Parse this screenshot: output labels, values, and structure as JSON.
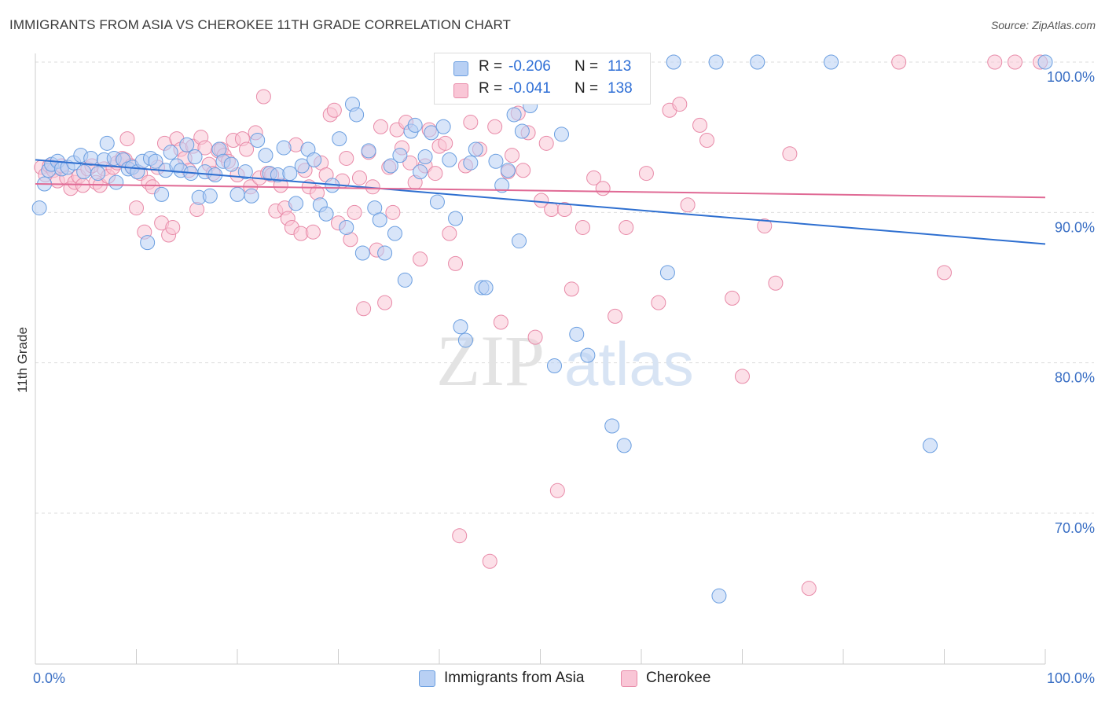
{
  "title": "IMMIGRANTS FROM ASIA VS CHEROKEE 11TH GRADE CORRELATION CHART",
  "source": "Source: ZipAtlas.com",
  "legend": {
    "series1": {
      "r_label": "R =",
      "r_value": "-0.206",
      "n_label": "N =",
      "n_value": "113"
    },
    "series2": {
      "r_label": "R =",
      "r_value": "-0.041",
      "n_label": "N =",
      "n_value": "138"
    }
  },
  "watermark": {
    "part1": "ZIP",
    "part2": "atlas"
  },
  "colors": {
    "blue_fill": "#b8d0f4",
    "blue_stroke": "#6a9ee0",
    "blue_line": "#2e6fd0",
    "pink_fill": "#f9c6d6",
    "pink_stroke": "#e88aa8",
    "pink_line": "#e06a95",
    "axis_text": "#3a6fc4",
    "grid": "#dddddd"
  },
  "chart_data": {
    "type": "scatter",
    "title": "IMMIGRANTS FROM ASIA VS CHEROKEE 11TH GRADE CORRELATION CHART",
    "xlabel": "",
    "ylabel": "11th Grade",
    "xlim": [
      0,
      100
    ],
    "ylim": [
      60.5,
      102.5
    ],
    "x_tick_labels": [
      "0.0%",
      "100.0%"
    ],
    "y_ticks": [
      70,
      80,
      90,
      100
    ],
    "y_tick_labels": [
      "70.0%",
      "80.0%",
      "90.0%",
      "100.0%"
    ],
    "grid": "horizontal dashed",
    "legend_position": "top-center",
    "series": [
      {
        "name": "Immigrants from Asia",
        "color": "blue",
        "trend": {
          "x": [
            0,
            100
          ],
          "y": [
            93.5,
            87.9
          ]
        },
        "points": [
          [
            0.4,
            90.3
          ],
          [
            0.9,
            91.9
          ],
          [
            1.3,
            92.8
          ],
          [
            1.6,
            93.2
          ],
          [
            2.2,
            93.4
          ],
          [
            2.6,
            92.9
          ],
          [
            3.2,
            93.0
          ],
          [
            3.8,
            93.3
          ],
          [
            4.5,
            93.8
          ],
          [
            4.8,
            92.7
          ],
          [
            5.5,
            93.6
          ],
          [
            6.2,
            92.6
          ],
          [
            6.8,
            93.5
          ],
          [
            7.1,
            94.6
          ],
          [
            7.8,
            93.6
          ],
          [
            8.0,
            92.0
          ],
          [
            8.7,
            93.5
          ],
          [
            9.2,
            92.9
          ],
          [
            9.6,
            93.0
          ],
          [
            10.1,
            92.7
          ],
          [
            10.6,
            93.4
          ],
          [
            11.1,
            88.0
          ],
          [
            11.4,
            93.6
          ],
          [
            11.9,
            93.4
          ],
          [
            12.5,
            91.2
          ],
          [
            12.9,
            92.8
          ],
          [
            13.4,
            94.0
          ],
          [
            14.0,
            93.1
          ],
          [
            14.4,
            92.8
          ],
          [
            15.0,
            94.5
          ],
          [
            15.4,
            92.6
          ],
          [
            15.8,
            93.7
          ],
          [
            16.2,
            91.0
          ],
          [
            16.8,
            92.7
          ],
          [
            17.3,
            91.1
          ],
          [
            17.8,
            92.5
          ],
          [
            18.2,
            94.2
          ],
          [
            18.6,
            93.4
          ],
          [
            19.4,
            93.2
          ],
          [
            20.0,
            91.2
          ],
          [
            20.8,
            92.7
          ],
          [
            21.4,
            91.1
          ],
          [
            22.0,
            94.8
          ],
          [
            22.8,
            93.8
          ],
          [
            23.2,
            92.6
          ],
          [
            24.0,
            92.5
          ],
          [
            24.6,
            94.3
          ],
          [
            25.2,
            92.6
          ],
          [
            25.8,
            90.6
          ],
          [
            26.4,
            93.1
          ],
          [
            27.0,
            94.2
          ],
          [
            27.6,
            93.5
          ],
          [
            28.2,
            90.5
          ],
          [
            28.8,
            89.9
          ],
          [
            29.4,
            91.8
          ],
          [
            30.1,
            94.9
          ],
          [
            30.8,
            89.0
          ],
          [
            31.4,
            97.2
          ],
          [
            31.8,
            96.5
          ],
          [
            32.4,
            87.3
          ],
          [
            33.0,
            94.1
          ],
          [
            33.6,
            90.3
          ],
          [
            34.1,
            89.5
          ],
          [
            34.6,
            87.3
          ],
          [
            35.2,
            93.1
          ],
          [
            35.6,
            88.6
          ],
          [
            36.1,
            93.8
          ],
          [
            36.6,
            85.5
          ],
          [
            37.2,
            95.4
          ],
          [
            37.6,
            95.8
          ],
          [
            38.1,
            92.7
          ],
          [
            38.6,
            93.7
          ],
          [
            39.2,
            95.3
          ],
          [
            39.8,
            90.7
          ],
          [
            40.4,
            95.7
          ],
          [
            41.0,
            93.5
          ],
          [
            41.6,
            89.6
          ],
          [
            42.1,
            82.4
          ],
          [
            42.6,
            81.5
          ],
          [
            43.1,
            93.3
          ],
          [
            43.6,
            94.2
          ],
          [
            44.2,
            85.0
          ],
          [
            44.6,
            85.0
          ],
          [
            45.6,
            93.4
          ],
          [
            46.2,
            91.8
          ],
          [
            46.8,
            92.8
          ],
          [
            47.4,
            96.5
          ],
          [
            47.9,
            88.1
          ],
          [
            48.2,
            95.4
          ],
          [
            49.0,
            97.1
          ],
          [
            49.6,
            100.0
          ],
          [
            50.3,
            98.1
          ],
          [
            51.4,
            79.8
          ],
          [
            52.1,
            95.2
          ],
          [
            52.6,
            100.0
          ],
          [
            53.6,
            81.9
          ],
          [
            54.7,
            80.5
          ],
          [
            57.1,
            75.8
          ],
          [
            58.3,
            74.5
          ],
          [
            62.6,
            86.0
          ],
          [
            63.2,
            100.0
          ],
          [
            67.4,
            100.0
          ],
          [
            67.7,
            64.5
          ],
          [
            71.5,
            100.0
          ],
          [
            78.8,
            100.0
          ],
          [
            88.6,
            74.5
          ],
          [
            100.0,
            100.0
          ]
        ]
      },
      {
        "name": "Cherokee",
        "color": "pink",
        "trend": {
          "x": [
            0,
            100
          ],
          "y": [
            91.9,
            91.0
          ]
        },
        "points": [
          [
            0.6,
            93.0
          ],
          [
            1.0,
            92.5
          ],
          [
            1.4,
            93.1
          ],
          [
            1.8,
            92.8
          ],
          [
            2.2,
            92.1
          ],
          [
            2.6,
            93.1
          ],
          [
            3.1,
            92.3
          ],
          [
            3.5,
            91.6
          ],
          [
            3.9,
            92.0
          ],
          [
            4.3,
            92.4
          ],
          [
            4.7,
            91.8
          ],
          [
            5.2,
            92.9
          ],
          [
            5.6,
            93.1
          ],
          [
            6.0,
            92.0
          ],
          [
            6.4,
            91.8
          ],
          [
            6.8,
            92.9
          ],
          [
            7.2,
            92.4
          ],
          [
            7.7,
            93.0
          ],
          [
            8.1,
            93.3
          ],
          [
            8.6,
            93.6
          ],
          [
            8.9,
            93.5
          ],
          [
            9.1,
            94.9
          ],
          [
            9.5,
            93.1
          ],
          [
            10.0,
            90.3
          ],
          [
            10.4,
            92.6
          ],
          [
            10.8,
            88.7
          ],
          [
            11.2,
            92.0
          ],
          [
            11.6,
            91.7
          ],
          [
            12.1,
            93.0
          ],
          [
            12.5,
            89.3
          ],
          [
            12.8,
            94.6
          ],
          [
            13.2,
            88.5
          ],
          [
            13.6,
            89.0
          ],
          [
            14.0,
            94.9
          ],
          [
            14.4,
            94.2
          ],
          [
            14.8,
            93.6
          ],
          [
            15.2,
            92.8
          ],
          [
            15.6,
            94.4
          ],
          [
            16.0,
            90.2
          ],
          [
            16.4,
            95.0
          ],
          [
            16.8,
            94.3
          ],
          [
            17.2,
            93.2
          ],
          [
            17.6,
            92.6
          ],
          [
            18.1,
            94.1
          ],
          [
            18.4,
            94.2
          ],
          [
            18.7,
            93.8
          ],
          [
            19.1,
            93.4
          ],
          [
            19.6,
            94.8
          ],
          [
            20.0,
            92.5
          ],
          [
            20.5,
            94.9
          ],
          [
            20.9,
            94.2
          ],
          [
            21.3,
            91.7
          ],
          [
            21.8,
            95.3
          ],
          [
            22.2,
            92.3
          ],
          [
            22.6,
            97.7
          ],
          [
            23.0,
            92.6
          ],
          [
            23.4,
            92.5
          ],
          [
            23.8,
            90.1
          ],
          [
            24.3,
            91.8
          ],
          [
            24.7,
            90.3
          ],
          [
            25.0,
            89.6
          ],
          [
            25.4,
            89.0
          ],
          [
            25.8,
            94.5
          ],
          [
            26.3,
            88.6
          ],
          [
            26.7,
            92.8
          ],
          [
            27.1,
            91.7
          ],
          [
            27.5,
            88.7
          ],
          [
            27.9,
            91.3
          ],
          [
            28.3,
            93.3
          ],
          [
            28.8,
            92.5
          ],
          [
            29.2,
            96.5
          ],
          [
            29.6,
            96.8
          ],
          [
            30.0,
            89.3
          ],
          [
            30.4,
            92.1
          ],
          [
            30.8,
            93.6
          ],
          [
            31.2,
            88.2
          ],
          [
            31.6,
            90.0
          ],
          [
            32.1,
            92.3
          ],
          [
            32.5,
            83.6
          ],
          [
            33.0,
            94.0
          ],
          [
            33.4,
            91.7
          ],
          [
            33.8,
            87.5
          ],
          [
            34.2,
            95.7
          ],
          [
            34.6,
            84.0
          ],
          [
            35.0,
            93.0
          ],
          [
            35.4,
            90.0
          ],
          [
            35.8,
            95.5
          ],
          [
            36.3,
            94.3
          ],
          [
            36.7,
            96.0
          ],
          [
            37.1,
            93.3
          ],
          [
            37.6,
            92.0
          ],
          [
            38.1,
            86.9
          ],
          [
            38.6,
            93.1
          ],
          [
            39.0,
            95.5
          ],
          [
            39.6,
            92.6
          ],
          [
            40.0,
            94.4
          ],
          [
            40.6,
            94.6
          ],
          [
            41.0,
            88.6
          ],
          [
            41.6,
            86.6
          ],
          [
            42.0,
            68.5
          ],
          [
            42.6,
            93.1
          ],
          [
            43.1,
            96.0
          ],
          [
            44.0,
            94.2
          ],
          [
            45.0,
            66.8
          ],
          [
            45.5,
            95.7
          ],
          [
            46.1,
            82.7
          ],
          [
            46.8,
            92.7
          ],
          [
            47.2,
            93.8
          ],
          [
            47.8,
            96.6
          ],
          [
            48.3,
            92.8
          ],
          [
            48.8,
            95.3
          ],
          [
            49.5,
            81.7
          ],
          [
            50.1,
            90.8
          ],
          [
            50.6,
            94.6
          ],
          [
            51.1,
            90.2
          ],
          [
            51.7,
            71.5
          ],
          [
            52.4,
            90.2
          ],
          [
            53.1,
            84.9
          ],
          [
            54.2,
            89.0
          ],
          [
            55.3,
            92.3
          ],
          [
            56.2,
            91.6
          ],
          [
            57.4,
            83.1
          ],
          [
            58.5,
            89.0
          ],
          [
            60.5,
            92.6
          ],
          [
            61.7,
            84.0
          ],
          [
            62.8,
            96.8
          ],
          [
            63.8,
            97.2
          ],
          [
            64.6,
            90.5
          ],
          [
            65.8,
            95.8
          ],
          [
            66.5,
            94.8
          ],
          [
            69.0,
            84.3
          ],
          [
            70.0,
            79.1
          ],
          [
            72.2,
            89.1
          ],
          [
            73.3,
            85.3
          ],
          [
            74.7,
            93.9
          ],
          [
            76.6,
            65.0
          ],
          [
            85.5,
            100.0
          ],
          [
            90.0,
            86.0
          ],
          [
            95.0,
            100.0
          ],
          [
            97.0,
            100.0
          ],
          [
            99.5,
            100.0
          ]
        ]
      }
    ]
  },
  "bottom_legend": {
    "item1": "Immigrants from Asia",
    "item2": "Cherokee"
  }
}
